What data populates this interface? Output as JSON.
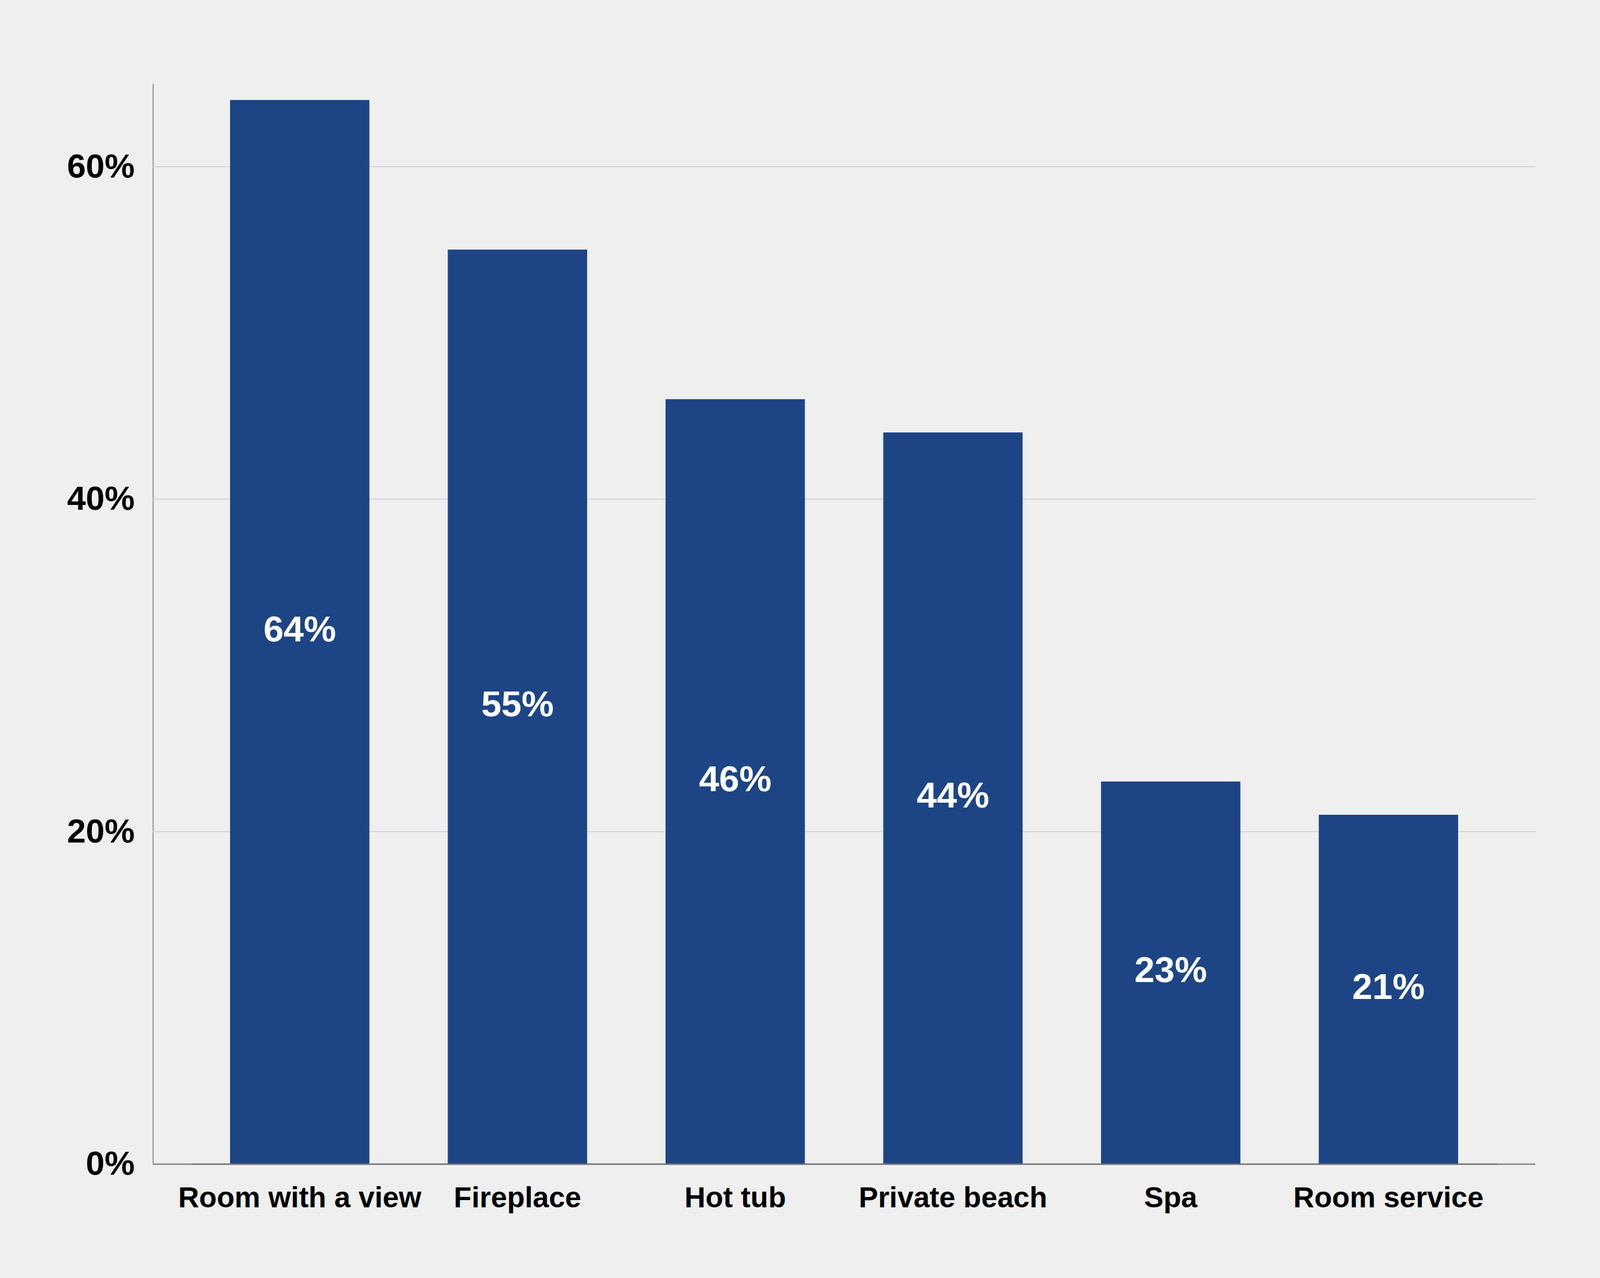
{
  "chart_data": {
    "type": "bar",
    "categories": [
      "Room with a view",
      "Fireplace",
      "Hot tub",
      "Private beach",
      "Spa",
      "Room service"
    ],
    "values": [
      64,
      55,
      46,
      44,
      23,
      21
    ],
    "value_labels": [
      "64%",
      "55%",
      "46%",
      "44%",
      "23%",
      "21%"
    ],
    "data_labels": true,
    "color": "#1d4586",
    "ylim": [
      0,
      65
    ],
    "yticks": [
      {
        "value": 0,
        "label": "0%"
      },
      {
        "value": 20,
        "label": "20%"
      },
      {
        "value": 40,
        "label": "40%"
      },
      {
        "value": 60,
        "label": "60%"
      }
    ],
    "grid": true
  }
}
